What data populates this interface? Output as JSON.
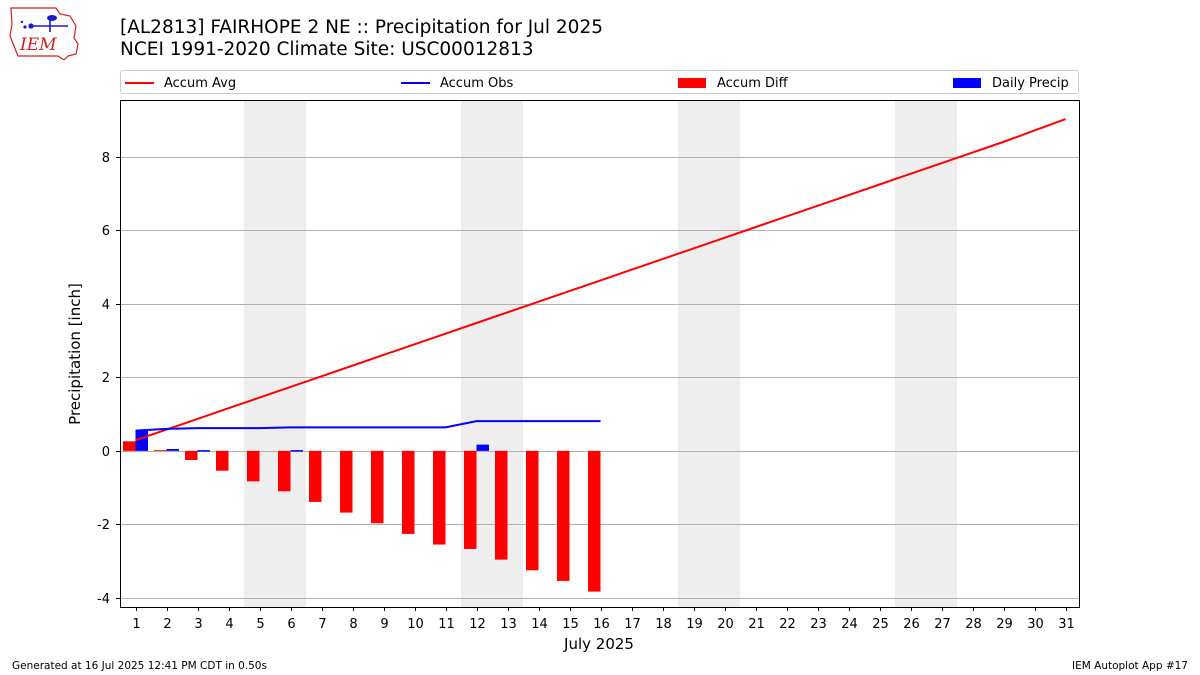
{
  "header": {
    "title_line1": "[AL2813] FAIRHOPE 2 NE :: Precipitation for Jul 2025",
    "title_line2": "NCEI 1991-2020 Climate Site: USC00012813",
    "logo_text": "IEM"
  },
  "legend": {
    "accum_avg": "Accum Avg",
    "accum_obs": "Accum Obs",
    "accum_diff": "Accum Diff",
    "daily_precip": "Daily Precip"
  },
  "colors": {
    "accum_avg": "#ff0000",
    "accum_obs": "#0000ff",
    "accum_diff": "#ff0000",
    "daily_precip": "#0000ff",
    "weekend_shade": "#eeeeee",
    "grid": "#b0b0b0"
  },
  "footer": {
    "generated": "Generated at 16 Jul 2025 12:41 PM CDT in 0.50s",
    "app": "IEM Autoplot App #17"
  },
  "chart_data": {
    "type": "bar",
    "xlabel": "July 2025",
    "ylabel": "Precipitation [inch]",
    "ylim": [
      -4.25,
      9.55
    ],
    "yticks": [
      -4,
      -2,
      0,
      2,
      4,
      6,
      8
    ],
    "grid": "horizontal",
    "legend_placement": "top",
    "days": [
      1,
      2,
      3,
      4,
      5,
      6,
      7,
      8,
      9,
      10,
      11,
      12,
      13,
      14,
      15,
      16,
      17,
      18,
      19,
      20,
      21,
      22,
      23,
      24,
      25,
      26,
      27,
      28,
      29,
      30,
      31
    ],
    "weekend_shading": [
      [
        5,
        6
      ],
      [
        12,
        13
      ],
      [
        19,
        20
      ],
      [
        26,
        27
      ]
    ],
    "series": [
      {
        "name": "Accum Avg",
        "type": "line",
        "values": [
          0.29,
          0.58,
          0.87,
          1.16,
          1.45,
          1.74,
          2.03,
          2.32,
          2.61,
          2.9,
          3.19,
          3.48,
          3.77,
          4.06,
          4.35,
          4.64,
          4.93,
          5.22,
          5.51,
          5.8,
          6.09,
          6.38,
          6.67,
          6.96,
          7.25,
          7.54,
          7.83,
          8.12,
          8.41,
          8.72,
          9.03
        ]
      },
      {
        "name": "Accum Obs",
        "type": "line",
        "values": [
          0.55,
          0.6,
          0.62,
          0.62,
          0.62,
          0.64,
          0.64,
          0.64,
          0.64,
          0.64,
          0.64,
          0.81,
          0.81,
          0.81,
          0.81,
          0.81
        ]
      },
      {
        "name": "Accum Diff",
        "type": "bar",
        "values": [
          0.26,
          0.02,
          -0.25,
          -0.54,
          -0.83,
          -1.1,
          -1.39,
          -1.68,
          -1.97,
          -2.26,
          -2.55,
          -2.67,
          -2.96,
          -3.25,
          -3.54,
          -3.83
        ]
      },
      {
        "name": "Daily Precip",
        "type": "bar",
        "values": [
          0.55,
          0.05,
          0.02,
          0.0,
          0.0,
          0.02,
          0.0,
          0.0,
          0.0,
          0.0,
          0.0,
          0.17,
          0.0,
          0.0,
          0.0,
          0.0
        ]
      }
    ]
  }
}
